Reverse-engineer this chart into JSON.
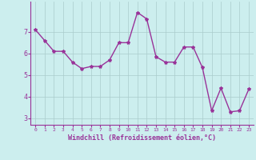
{
  "x": [
    0,
    1,
    2,
    3,
    4,
    5,
    6,
    7,
    8,
    9,
    10,
    11,
    12,
    13,
    14,
    15,
    16,
    17,
    18,
    19,
    20,
    21,
    22,
    23
  ],
  "y": [
    7.1,
    6.6,
    6.1,
    6.1,
    5.6,
    5.3,
    5.4,
    5.4,
    5.7,
    6.5,
    6.5,
    7.9,
    7.6,
    5.85,
    5.6,
    5.6,
    6.3,
    6.3,
    5.35,
    3.35,
    4.4,
    3.3,
    3.35,
    4.35
  ],
  "line_color": "#993399",
  "marker": "*",
  "marker_size": 3,
  "bg_color": "#cceeee",
  "grid_color": "#aacccc",
  "xlabel": "Windchill (Refroidissement éolien,°C)",
  "xlabel_color": "#993399",
  "tick_color": "#993399",
  "ylim": [
    2.7,
    8.4
  ],
  "xlim": [
    -0.5,
    23.5
  ],
  "yticks": [
    3,
    4,
    5,
    6,
    7
  ],
  "xticks": [
    0,
    1,
    2,
    3,
    4,
    5,
    6,
    7,
    8,
    9,
    10,
    11,
    12,
    13,
    14,
    15,
    16,
    17,
    18,
    19,
    20,
    21,
    22,
    23
  ],
  "line_width": 1.0,
  "spine_color": "#993399",
  "xlabel_fontsize": 6,
  "ylabel_fontsize": 6,
  "xtick_fontsize": 4.5,
  "ytick_fontsize": 6
}
